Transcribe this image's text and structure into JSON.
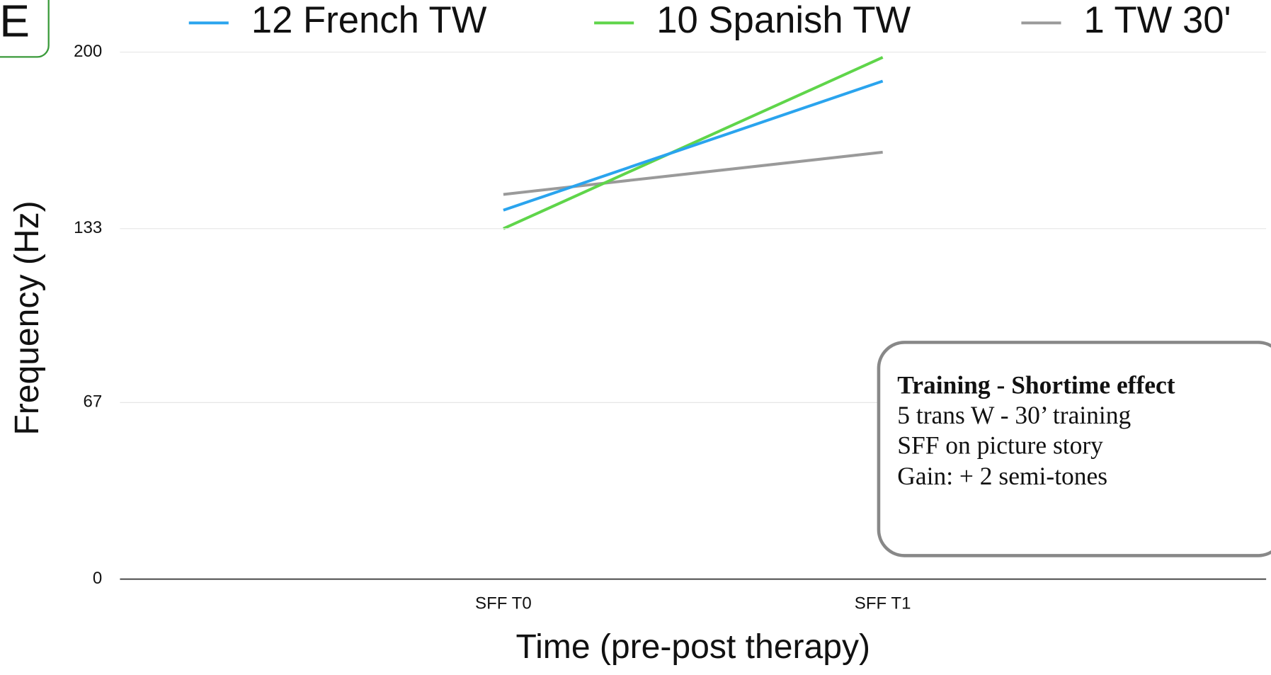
{
  "panel_label": "E",
  "chart_data": {
    "type": "line",
    "categories": [
      "SFF T0",
      "SFF T1"
    ],
    "series": [
      {
        "name": "12 French TW",
        "color": "#2aa4ee",
        "values": [
          140,
          189
        ]
      },
      {
        "name": "10 Spanish TW",
        "color": "#5fd54a",
        "values": [
          133,
          198
        ]
      },
      {
        "name": "1 TW 30'",
        "color": "#9a9a9a",
        "values": [
          146,
          162
        ]
      }
    ],
    "ylim": [
      0,
      200
    ],
    "yticks": [
      0,
      67,
      133,
      200
    ],
    "grid": true,
    "x_label": "Time (pre-post therapy)",
    "y_label": "Frequency (Hz)",
    "legend": "top",
    "annotation": {
      "title": "Training - Shortime effect",
      "lines": [
        "5 trans W - 30’ training",
        "SFF on picture story",
        "Gain: + 2 semi-tones"
      ]
    }
  }
}
